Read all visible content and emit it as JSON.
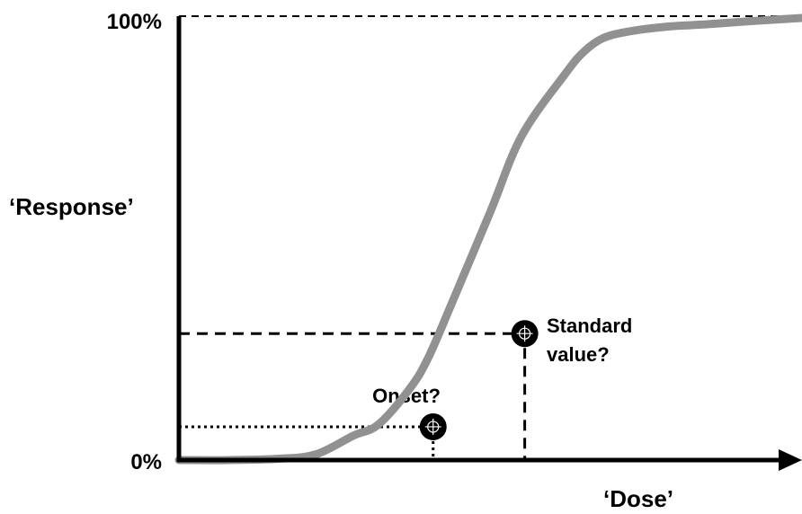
{
  "chart_data": {
    "type": "line",
    "title": "",
    "xlabel": "‘Dose’",
    "ylabel": "‘Response’",
    "y_ticks": [
      "0%",
      "100%"
    ],
    "ylim": [
      0,
      100
    ],
    "xlim": [
      0,
      1
    ],
    "grid": false,
    "colors": {
      "curve": "#919191",
      "axes": "#000000",
      "markers": "#000000"
    },
    "series": [
      {
        "x": [
          0,
          0.08,
          0.16,
          0.22,
          0.28,
          0.32,
          0.37,
          0.4,
          0.44,
          0.5,
          0.55,
          0.62,
          0.65,
          0.68,
          0.72,
          0.78,
          0.85,
          0.92,
          1.0
        ],
        "y": [
          0,
          0,
          0.3,
          1.3,
          5.5,
          8.0,
          16,
          23,
          36,
          56,
          73,
          87,
          92,
          95,
          96.5,
          97.6,
          98.2,
          98.9,
          99.6
        ]
      }
    ],
    "markers": [
      {
        "name": "onset",
        "label": "Onset?",
        "x": 0.408,
        "y": 7.5,
        "guide_style": "dotted"
      },
      {
        "name": "standard",
        "label_lines": [
          "Standard",
          "value?"
        ],
        "x": 0.555,
        "y": 28.5,
        "guide_style": "dashed"
      }
    ],
    "reference_lines": [
      {
        "name": "top-100-line",
        "y": 100,
        "style": "dashed"
      }
    ]
  }
}
